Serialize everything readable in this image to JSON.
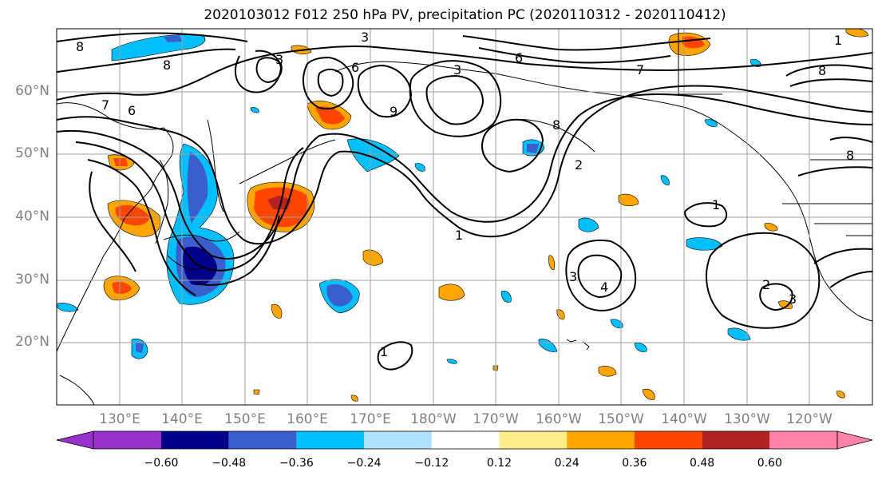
{
  "title": "2020103012 F012 250 hPa PV, precipitation PC (2020110312 - 2020110412)",
  "lat_labels": [
    "60°N",
    "50°N",
    "40°N",
    "30°N",
    "20°N"
  ],
  "lon_labels": [
    "130°E",
    "140°E",
    "150°E",
    "160°E",
    "170°E",
    "180°W",
    "170°W",
    "160°W",
    "150°W",
    "140°W",
    "130°W",
    "120°W"
  ],
  "colorbar": {
    "colors": [
      "#9932cc",
      "#00008b",
      "#3a5fcd",
      "#00bfff",
      "#b0e2ff",
      "#ffffff",
      "#ffec8b",
      "#ffa500",
      "#ff4500",
      "#b22222",
      "#ff82ab"
    ],
    "tick_labels": [
      "−0.60",
      "−0.48",
      "−0.36",
      "−0.24",
      "−0.12",
      "0.12",
      "0.24",
      "0.36",
      "0.48",
      "0.60"
    ]
  },
  "contour_labels": [
    "8",
    "8",
    "7",
    "6",
    "3",
    "3",
    "6",
    "3",
    "7",
    "8",
    "9",
    "1",
    "1",
    "8",
    "6",
    "2",
    "1",
    "1",
    "4",
    "3",
    "2",
    "3",
    "8"
  ],
  "colors": {
    "grid": "#a0a0a0",
    "contour": "#000000",
    "coast": "#000000"
  }
}
